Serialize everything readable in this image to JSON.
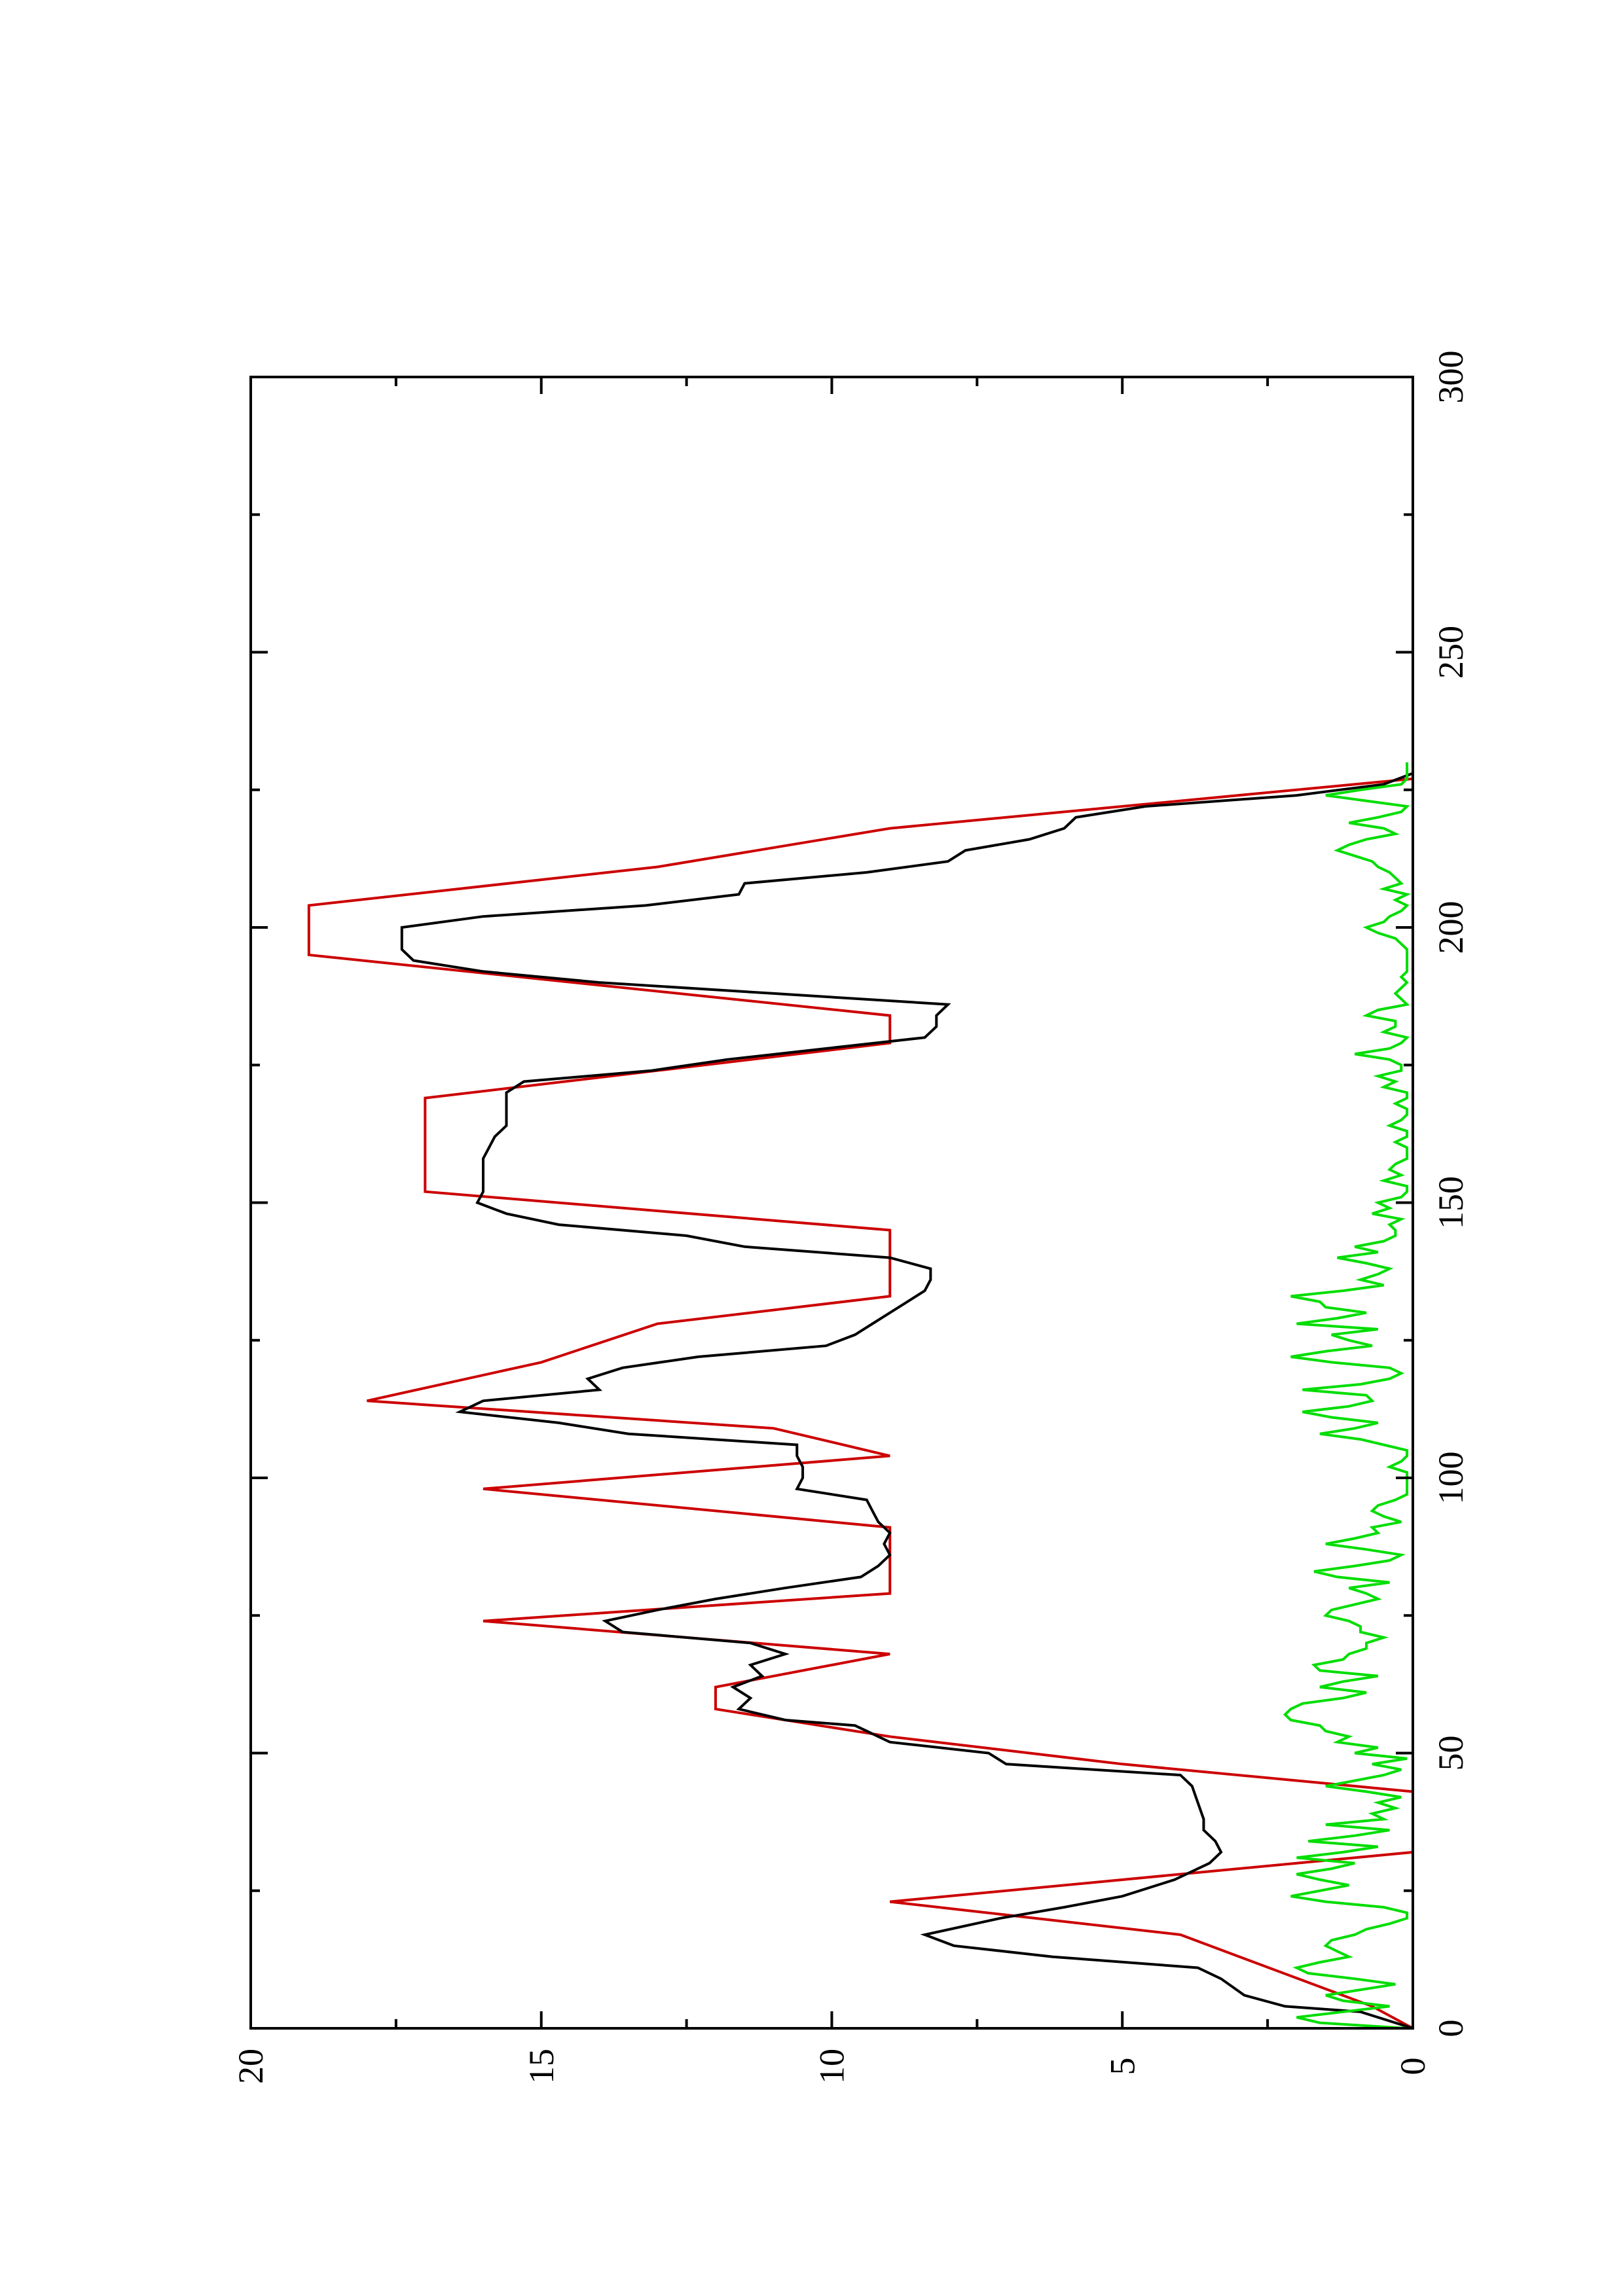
{
  "chart_data": {
    "type": "line",
    "title": "",
    "xlabel": "",
    "ylabel": "",
    "xlim": [
      0,
      300
    ],
    "ylim": [
      0,
      20
    ],
    "x_ticks": [
      0,
      50,
      100,
      150,
      200,
      250,
      300
    ],
    "x_minor_ticks": [
      25,
      75,
      125,
      175,
      225,
      275
    ],
    "y_ticks": [
      0,
      5,
      10,
      15,
      20
    ],
    "y_minor_ticks": [
      2.5,
      7.5,
      12.5,
      17.5
    ],
    "grid": false,
    "orientation": "rotated-90-ccw",
    "series": [
      {
        "color": "#cc0000",
        "x": [
          0,
          4,
          4,
          17,
          17,
          23,
          23,
          32,
          32,
          43,
          43,
          48,
          48,
          53,
          53,
          58,
          58,
          62,
          62,
          68,
          68,
          74,
          74,
          79,
          79,
          85,
          85,
          91,
          91,
          98,
          98,
          104,
          104,
          109,
          109,
          114,
          114,
          121,
          121,
          128,
          128,
          133,
          133,
          139,
          139,
          145,
          145,
          152,
          152,
          169,
          169,
          174,
          174,
          179,
          179,
          184,
          184,
          195,
          195,
          204,
          204,
          211,
          211,
          218,
          218,
          222,
          222,
          227
        ],
        "y": [
          0,
          0.7,
          0.7,
          4,
          4,
          9,
          9,
          0,
          0,
          0,
          0,
          5,
          5,
          9,
          9,
          12,
          12,
          12,
          12,
          9,
          9,
          16,
          16,
          9,
          9,
          9,
          9,
          9,
          9,
          16,
          16,
          9,
          9,
          11,
          11,
          18,
          18,
          15,
          15,
          13,
          13,
          9,
          9,
          9,
          9,
          9,
          9,
          17,
          17,
          17,
          17,
          13,
          13,
          9,
          9,
          9,
          9,
          19,
          19,
          19,
          19,
          13,
          13,
          9,
          9,
          5,
          5,
          0
        ]
      },
      {
        "color": "#000000",
        "x": [
          0,
          3,
          4,
          6,
          9,
          11,
          13,
          15,
          17,
          20,
          22,
          24,
          27,
          30,
          32,
          34,
          36,
          38,
          41,
          44,
          46,
          48,
          50,
          52,
          55,
          56,
          58,
          60,
          62,
          64,
          66,
          68,
          70,
          72,
          74,
          76,
          78,
          80,
          82,
          84,
          86,
          88,
          90,
          92,
          94,
          96,
          98,
          100,
          102,
          104,
          106,
          108,
          110,
          112,
          114,
          116,
          118,
          120,
          122,
          124,
          126,
          128,
          130,
          132,
          134,
          136,
          138,
          140,
          142,
          144,
          146,
          148,
          150,
          152,
          154,
          156,
          158,
          160,
          162,
          164,
          166,
          168,
          170,
          172,
          174,
          176,
          178,
          180,
          182,
          184,
          186,
          188,
          190,
          192,
          194,
          196,
          198,
          200,
          202,
          204,
          206,
          208,
          210,
          212,
          214,
          216,
          218,
          220,
          222,
          224,
          226,
          228
        ],
        "y": [
          0,
          0.9,
          2.2,
          2.9,
          3.3,
          3.7,
          6.2,
          7.9,
          8.4,
          7.1,
          6.0,
          5.0,
          4.1,
          3.5,
          3.3,
          3.4,
          3.6,
          3.6,
          3.7,
          3.8,
          4.0,
          7.0,
          7.3,
          9.0,
          9.6,
          10.8,
          11.6,
          11.4,
          11.7,
          11.2,
          11.4,
          10.8,
          11.4,
          13.6,
          13.9,
          13.0,
          12.0,
          10.8,
          9.5,
          9.2,
          9.0,
          9.1,
          9.0,
          9.2,
          9.3,
          9.4,
          10.6,
          10.5,
          10.5,
          10.6,
          10.6,
          13.5,
          14.7,
          16.4,
          16.0,
          14.0,
          14.2,
          13.6,
          12.3,
          10.1,
          9.6,
          9.3,
          9.0,
          8.7,
          8.4,
          8.3,
          8.3,
          9.0,
          11.5,
          12.5,
          14.7,
          15.6,
          16.1,
          16.0,
          16.0,
          16.0,
          16.0,
          15.9,
          15.8,
          15.6,
          15.6,
          15.6,
          15.6,
          15.3,
          13.1,
          11.8,
          10.1,
          8.4,
          8.2,
          8.2,
          8.0,
          11.0,
          14.0,
          16.0,
          17.2,
          17.4,
          17.4,
          17.4,
          16.0,
          13.2,
          11.6,
          11.5,
          9.4,
          8.0,
          7.7,
          6.6,
          6.0,
          5.8,
          4.6,
          2.0,
          0.5,
          0
        ]
      },
      {
        "color": "#00dd00",
        "x": [
          0,
          1,
          2,
          3,
          4,
          5,
          6,
          7,
          8,
          9,
          10,
          11,
          12,
          13,
          14,
          15,
          16,
          17,
          18,
          19,
          20,
          21,
          22,
          23,
          24,
          25,
          26,
          27,
          28,
          29,
          30,
          31,
          32,
          33,
          34,
          35,
          36,
          37,
          38,
          39,
          40,
          41,
          42,
          43,
          44,
          45,
          46,
          47,
          48,
          49,
          50,
          51,
          52,
          53,
          54,
          55,
          56,
          57,
          58,
          59,
          60,
          61,
          62,
          63,
          64,
          65,
          66,
          67,
          68,
          69,
          70,
          71,
          72,
          73,
          74,
          75,
          76,
          77,
          78,
          79,
          80,
          81,
          82,
          83,
          84,
          85,
          86,
          87,
          88,
          89,
          90,
          91,
          92,
          93,
          94,
          95,
          96,
          97,
          98,
          99,
          100,
          101,
          102,
          103,
          104,
          105,
          106,
          107,
          108,
          109,
          110,
          111,
          112,
          113,
          114,
          115,
          116,
          117,
          118,
          119,
          120,
          121,
          122,
          123,
          124,
          125,
          126,
          127,
          128,
          129,
          130,
          131,
          132,
          133,
          134,
          135,
          136,
          137,
          138,
          139,
          140,
          141,
          142,
          143,
          144,
          145,
          146,
          147,
          148,
          149,
          150,
          151,
          152,
          153,
          154,
          155,
          156,
          157,
          158,
          159,
          160,
          161,
          162,
          163,
          164,
          165,
          166,
          167,
          168,
          169,
          170,
          171,
          172,
          173,
          174,
          175,
          176,
          177,
          178,
          179,
          180,
          181,
          182,
          183,
          184,
          185,
          186,
          187,
          188,
          189,
          190,
          191,
          192,
          193,
          194,
          195,
          196,
          197,
          198,
          199,
          200,
          201,
          202,
          203,
          204,
          205,
          206,
          207,
          208,
          209,
          210,
          211,
          212,
          213,
          214,
          215,
          216,
          217,
          218,
          219,
          220,
          221,
          222,
          223,
          224,
          225,
          226,
          227,
          228,
          229,
          230
        ],
        "y": [
          0.1,
          1.6,
          2.0,
          1.2,
          0.4,
          1.2,
          1.5,
          0.9,
          0.3,
          1.0,
          1.8,
          2.0,
          1.6,
          1.1,
          1.3,
          1.5,
          1.4,
          1.0,
          0.8,
          0.4,
          0.1,
          0.1,
          0.5,
          1.5,
          2.1,
          1.6,
          1.1,
          1.6,
          2.0,
          1.4,
          1.0,
          2.0,
          1.2,
          0.6,
          1.8,
          1.0,
          0.4,
          1.5,
          0.5,
          0.7,
          0.3,
          0.6,
          0.2,
          0.8,
          1.5,
          1.0,
          0.5,
          0.2,
          0.7,
          0.1,
          1.0,
          0.6,
          1.3,
          1.1,
          1.5,
          1.6,
          2.1,
          2.2,
          2.1,
          1.9,
          1.2,
          0.8,
          1.6,
          1.2,
          0.6,
          1.6,
          1.7,
          1.2,
          1.1,
          0.8,
          0.8,
          0.5,
          0.9,
          0.9,
          1.1,
          1.5,
          1.4,
          1.0,
          0.6,
          0.8,
          1.1,
          0.4,
          1.3,
          1.7,
          1.0,
          0.4,
          0.2,
          0.8,
          1.5,
          1.0,
          0.6,
          0.7,
          0.2,
          0.5,
          0.7,
          0.6,
          0.3,
          0.1,
          0.1,
          0.1,
          0.1,
          0.1,
          0.4,
          0.2,
          0.1,
          0.1,
          0.5,
          0.9,
          1.6,
          1.0,
          0.6,
          1.4,
          1.9,
          1.1,
          0.7,
          0.8,
          1.9,
          0.9,
          0.4,
          0.2,
          0.4,
          1.4,
          2.1,
          1.5,
          0.7,
          1.1,
          1.4,
          0.6,
          2.0,
          1.3,
          0.8,
          1.5,
          1.6,
          2.1,
          1.2,
          0.5,
          0.9,
          0.6,
          0.4,
          0.8,
          1.3,
          0.6,
          1.0,
          0.5,
          0.3,
          0.3,
          0.4,
          0.2,
          0.7,
          0.4,
          0.6,
          0.2,
          0.1,
          0.1,
          0.5,
          0.2,
          0.4,
          0.3,
          0.1,
          0.1,
          0.1,
          0.3,
          0.1,
          0.1,
          0.4,
          0.2,
          0.1,
          0.1,
          0.3,
          0.1,
          0.1,
          0.5,
          0.3,
          0.6,
          0.2,
          0.2,
          0.4,
          1.0,
          0.4,
          0.2,
          0.1,
          0.5,
          0.3,
          0.3,
          0.8,
          0.6,
          0.1,
          0.2,
          0.3,
          0.2,
          0.1,
          0.2,
          0.1,
          0.1,
          0.1,
          0.1,
          0.1,
          0.2,
          0.3,
          0.6,
          0.8,
          0.5,
          0.4,
          0.2,
          0.1,
          0.3,
          0.1,
          0.5,
          0.2,
          0.3,
          0.4,
          0.6,
          0.7,
          1.0,
          1.3,
          1.1,
          0.8,
          0.3,
          0.5,
          1.1,
          0.6,
          0.2,
          0.1,
          0.8,
          1.5,
          0.9,
          0.2,
          0.1,
          0.1,
          0.1,
          0.1
        ]
      }
    ]
  }
}
